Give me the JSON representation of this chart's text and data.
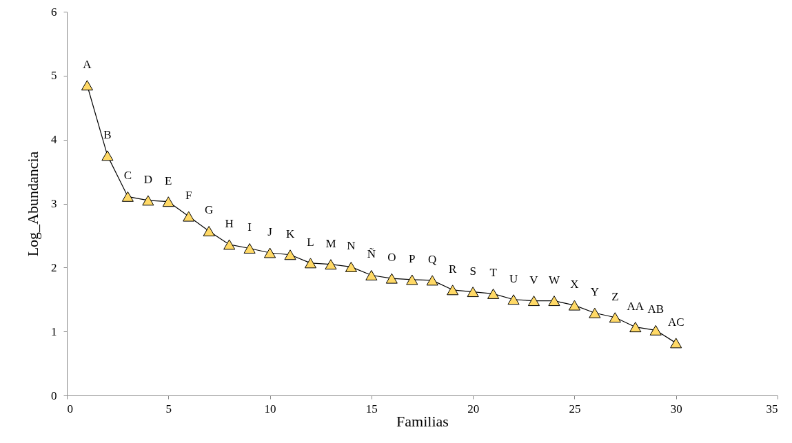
{
  "chart_data": {
    "type": "line",
    "xlabel": "Familias",
    "ylabel": "Log_Abundancia",
    "x": [
      1,
      2,
      3,
      4,
      5,
      6,
      7,
      8,
      9,
      10,
      11,
      12,
      13,
      14,
      15,
      16,
      17,
      18,
      19,
      20,
      21,
      22,
      23,
      24,
      25,
      26,
      27,
      28,
      29,
      30
    ],
    "series": [
      {
        "color": "#ffd966",
        "values": [
          4.85,
          3.75,
          3.11,
          3.05,
          3.03,
          2.8,
          2.57,
          2.36,
          2.3,
          2.23,
          2.2,
          2.07,
          2.05,
          2.01,
          1.88,
          1.83,
          1.81,
          1.8,
          1.65,
          1.62,
          1.59,
          1.5,
          1.48,
          1.48,
          1.41,
          1.29,
          1.22,
          1.07,
          1.02,
          0.82
        ]
      }
    ],
    "xlim": [
      0,
      35
    ],
    "xticks": [
      0,
      5,
      10,
      15,
      20,
      25,
      30,
      35
    ],
    "ylim": [
      0,
      6
    ],
    "yticks": [
      0,
      1,
      2,
      3,
      4,
      5,
      6
    ],
    "marker": "triangle",
    "grid": false,
    "annotations": [
      {
        "text": "A",
        "x": 1,
        "y": 4.85
      },
      {
        "text": "B",
        "x": 2,
        "y": 3.75
      },
      {
        "text": "C",
        "x": 3,
        "y": 3.11
      },
      {
        "text": "D",
        "x": 4,
        "y": 3.05
      },
      {
        "text": "E",
        "x": 5,
        "y": 3.03
      },
      {
        "text": "F",
        "x": 6,
        "y": 2.8
      },
      {
        "text": "G",
        "x": 7,
        "y": 2.57
      },
      {
        "text": "H",
        "x": 8,
        "y": 2.36
      },
      {
        "text": "I",
        "x": 9,
        "y": 2.3
      },
      {
        "text": "J",
        "x": 10,
        "y": 2.23
      },
      {
        "text": "K",
        "x": 11,
        "y": 2.2
      },
      {
        "text": "L",
        "x": 12,
        "y": 2.07
      },
      {
        "text": "M",
        "x": 13,
        "y": 2.05
      },
      {
        "text": "N",
        "x": 14,
        "y": 2.01
      },
      {
        "text": "Ñ",
        "x": 15,
        "y": 1.88
      },
      {
        "text": "O",
        "x": 16,
        "y": 1.83
      },
      {
        "text": "P",
        "x": 17,
        "y": 1.81
      },
      {
        "text": "Q",
        "x": 18,
        "y": 1.8
      },
      {
        "text": "R",
        "x": 19,
        "y": 1.65
      },
      {
        "text": "S",
        "x": 20,
        "y": 1.62
      },
      {
        "text": "T",
        "x": 21,
        "y": 1.59
      },
      {
        "text": "U",
        "x": 22,
        "y": 1.5
      },
      {
        "text": "V",
        "x": 23,
        "y": 1.48
      },
      {
        "text": "W",
        "x": 24,
        "y": 1.48
      },
      {
        "text": "X",
        "x": 25,
        "y": 1.41
      },
      {
        "text": "Y",
        "x": 26,
        "y": 1.29
      },
      {
        "text": "Z",
        "x": 27,
        "y": 1.22
      },
      {
        "text": "AA",
        "x": 28,
        "y": 1.07
      },
      {
        "text": "AB",
        "x": 29,
        "y": 1.02
      },
      {
        "text": "AC",
        "x": 30,
        "y": 0.82
      }
    ]
  }
}
